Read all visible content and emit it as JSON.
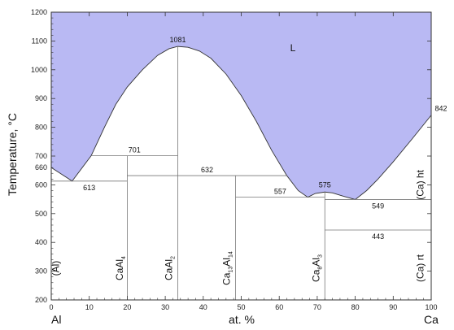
{
  "chart_data": {
    "type": "line",
    "xlabel": "at. %",
    "ylabel": "Temperature, °C",
    "xlim": [
      0,
      100
    ],
    "ylim": [
      200,
      1200
    ],
    "x_ticks": [
      0,
      10,
      20,
      30,
      40,
      50,
      60,
      70,
      80,
      90,
      100
    ],
    "y_ticks": [
      200,
      300,
      400,
      500,
      600,
      700,
      800,
      900,
      1000,
      1100,
      1200
    ],
    "endpoint_left": "Al",
    "endpoint_right": "Ca",
    "liquid_fill_color": "#b9b9f3",
    "liquid_label": "L",
    "liquidus": {
      "x": [
        0,
        5.5,
        10.5,
        14,
        17,
        20,
        24,
        28,
        31,
        33.3,
        36,
        39,
        42,
        46,
        50,
        54,
        58,
        62,
        65,
        67.5,
        69.5,
        72,
        74,
        77,
        80,
        83,
        86,
        90,
        95,
        100
      ],
      "y": [
        660,
        613,
        701,
        800,
        880,
        940,
        1000,
        1050,
        1073,
        1081,
        1078,
        1065,
        1040,
        985,
        910,
        820,
        720,
        632,
        580,
        557,
        570,
        575,
        572,
        560,
        549,
        580,
        620,
        680,
        760,
        842
      ]
    },
    "liquidus_label_points": [
      {
        "x": 33.3,
        "y": 1081,
        "label": "1081"
      },
      {
        "x": 100,
        "y": 842,
        "label": "842"
      }
    ],
    "left_labels": [
      {
        "y": 660,
        "label": "660"
      }
    ],
    "horizontal_lines": [
      {
        "x1": 0,
        "x2": 20,
        "y": 613,
        "label": "613"
      },
      {
        "x1": 10.5,
        "x2": 33.3,
        "y": 701,
        "label": "701"
      },
      {
        "x1": 20,
        "x2": 62,
        "y": 632,
        "label": "632"
      },
      {
        "x1": 48.5,
        "x2": 72,
        "y": 557,
        "label": "557"
      },
      {
        "x1": 72,
        "x2": 100,
        "y": 549,
        "label": "549"
      },
      {
        "x1": 72,
        "x2": 100,
        "y": 443,
        "label": "443"
      }
    ],
    "vertical_lines": [
      {
        "x": 20,
        "y_top": 701
      },
      {
        "x": 33.3,
        "y_top": 1081
      },
      {
        "x": 48.5,
        "y_top": 632
      },
      {
        "x": 72,
        "y_top": 575
      }
    ],
    "point_labels": [
      {
        "x": 72,
        "y": 575,
        "label": "575"
      }
    ],
    "phase_labels": [
      {
        "x": 2,
        "y": 310,
        "main": "(Al)",
        "sub": "",
        "tail": ""
      },
      {
        "x": 18.8,
        "y": 310,
        "main": "CaAl",
        "sub": "4",
        "tail": ""
      },
      {
        "x": 31.8,
        "y": 310,
        "main": "CaAl",
        "sub": "2",
        "tail": ""
      },
      {
        "x": 47.0,
        "y": 310,
        "main": "Ca",
        "sub": "13",
        "tail": "Al14"
      },
      {
        "x": 70.6,
        "y": 310,
        "main": "Ca",
        "sub": "8",
        "tail": "Al3"
      },
      {
        "x": 98,
        "y": 310,
        "main": "(Ca) rt",
        "sub": "",
        "tail": ""
      },
      {
        "x": 98,
        "y": 600,
        "main": "(Ca) ht",
        "sub": "",
        "tail": ""
      }
    ]
  }
}
